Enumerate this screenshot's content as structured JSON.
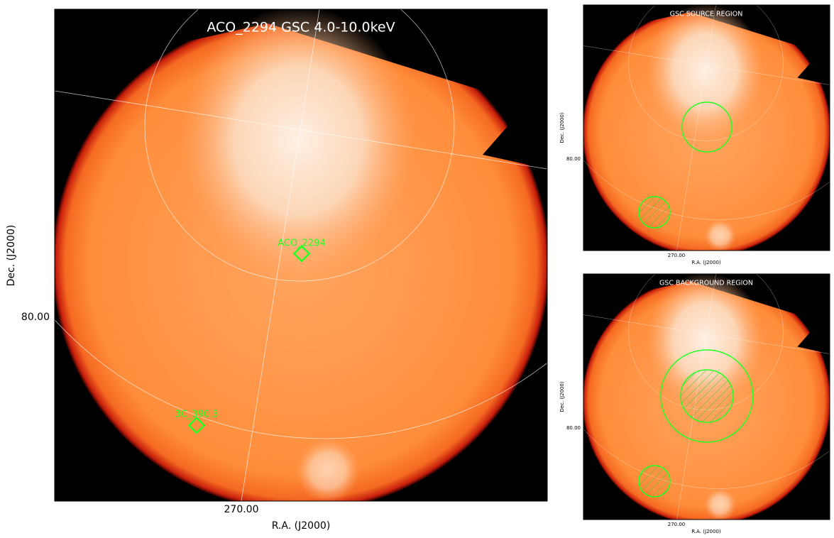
{
  "main": {
    "title": "ACO_2294 GSC 4.0-10.0keV",
    "x_label": "R.A. (J2000)",
    "y_label": "Dec. (J2000)",
    "x_tick": "270.00",
    "y_tick": "80.00",
    "sources": [
      "ACO_2294",
      "3C_390.3"
    ]
  },
  "source_panel": {
    "title": "GSC SOURCE REGION",
    "x_label": "R.A. (J2000)",
    "y_label": "Dec. (J2000)",
    "x_tick": "270.00",
    "y_tick": "80.00"
  },
  "background_panel": {
    "title": "GSC BACKGROUND REGION",
    "x_label": "R.A. (J2000)",
    "y_label": "Dec. (J2000)",
    "x_tick": "270.00",
    "y_tick": "80.00"
  }
}
